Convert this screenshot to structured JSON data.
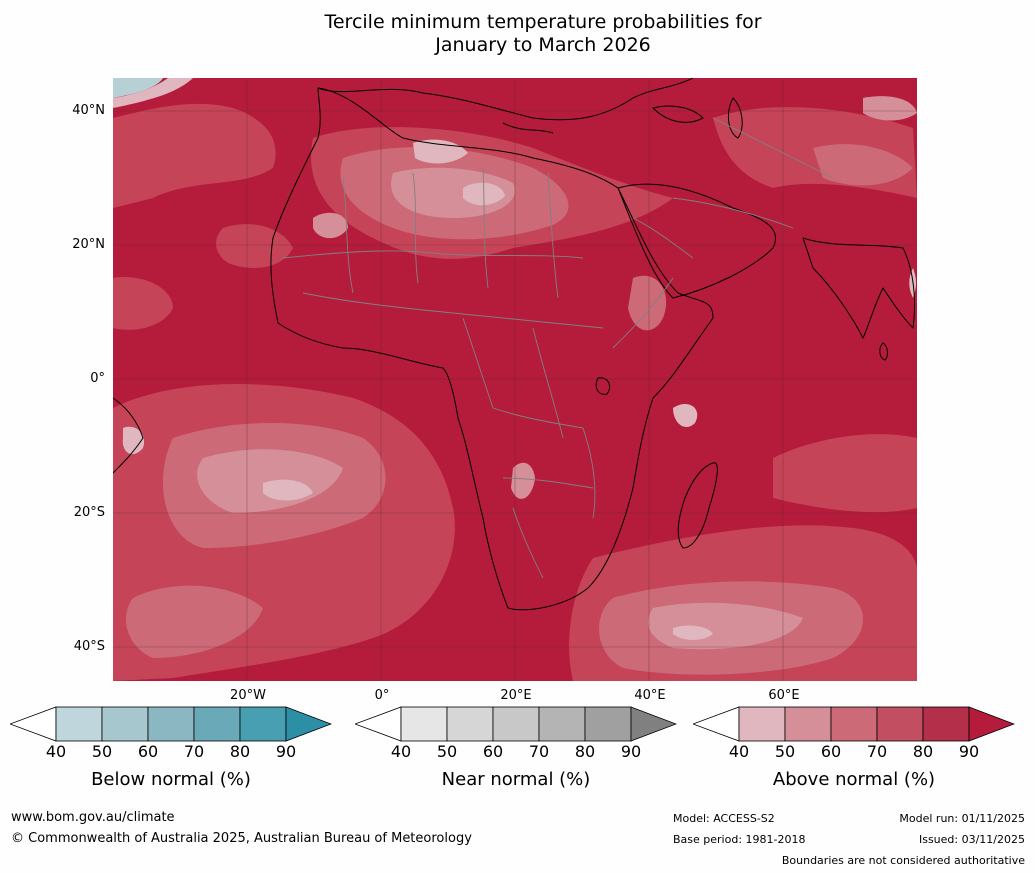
{
  "title": {
    "line1": "Tercile minimum temperature probabilities for",
    "line2": "January to March 2026"
  },
  "map": {
    "lat_labels": [
      "40°N",
      "20°N",
      "0°",
      "20°S",
      "40°S"
    ],
    "lon_labels": [
      "20°W",
      "0°",
      "20°E",
      "40°E",
      "60°E"
    ],
    "colors": {
      "above_90": "#b51c3c",
      "above_80": "#c64457",
      "above_70": "#cc6a78",
      "above_60": "#d58f99",
      "above_50": "#e0b7bf",
      "ocean_cool": "#b7d0d6",
      "border_country": "#808080",
      "coastline": "#000000"
    }
  },
  "colorbars": [
    {
      "title": "Below normal (%)",
      "ticks": [
        "40",
        "50",
        "60",
        "70",
        "80",
        "90"
      ],
      "colors": [
        "#ffffff",
        "#bfd6dc",
        "#a7c7ce",
        "#8ab7c2",
        "#6aa9b8",
        "#479fb1",
        "#2c8fa6"
      ]
    },
    {
      "title": "Near normal (%)",
      "ticks": [
        "40",
        "50",
        "60",
        "70",
        "80",
        "90"
      ],
      "colors": [
        "#ffffff",
        "#e6e6e6",
        "#d6d6d6",
        "#c8c8c8",
        "#b4b4b4",
        "#a0a0a0",
        "#808080"
      ]
    },
    {
      "title": "Above normal (%)",
      "ticks": [
        "40",
        "50",
        "60",
        "70",
        "80",
        "90"
      ],
      "colors": [
        "#ffffff",
        "#e0b7bf",
        "#d58f99",
        "#cc6a78",
        "#c14f61",
        "#b4304a",
        "#b51c3c"
      ]
    }
  ],
  "footer": {
    "website": "www.bom.gov.au/climate",
    "copyright": "© Commonwealth of Australia 2025, Australian Bureau of Meteorology",
    "model": "Model: ACCESS-S2",
    "base_period": "Base period: 1981-2018",
    "model_run": "Model run: 01/11/2025",
    "issued": "Issued: 03/11/2025",
    "disclaimer": "Boundaries are not considered authoritative"
  }
}
